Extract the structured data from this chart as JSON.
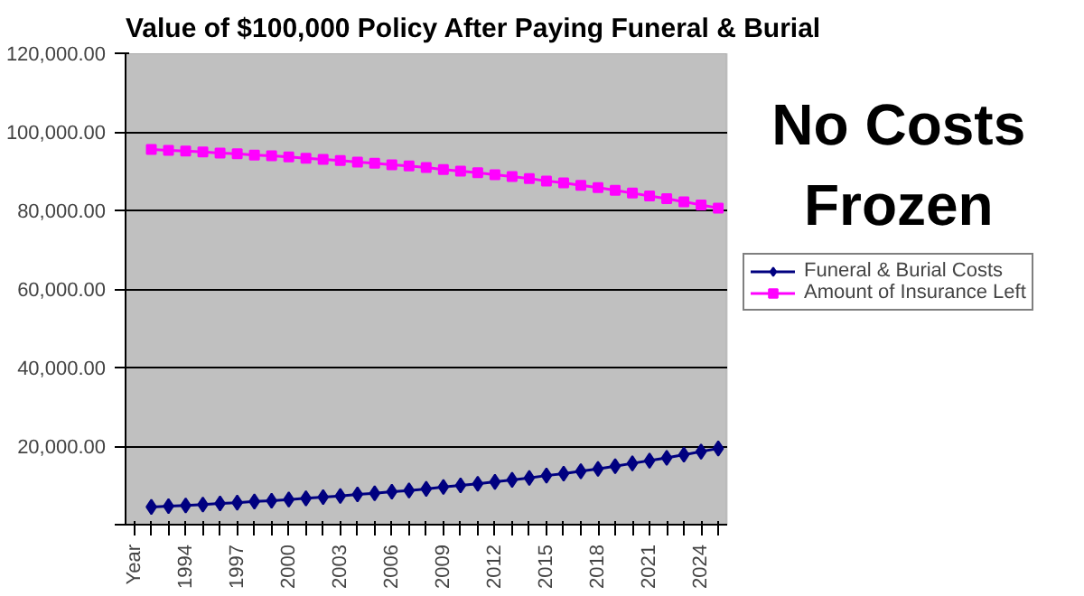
{
  "chart_data": {
    "type": "line",
    "title": "Value of $100,000 Policy After Paying Funeral & Burial",
    "annotations": [
      "No Costs Frozen"
    ],
    "categories": [
      "Year",
      null,
      null,
      "1994",
      null,
      null,
      "1997",
      null,
      null,
      "2000",
      null,
      null,
      "2003",
      null,
      null,
      "2006",
      null,
      null,
      "2009",
      null,
      null,
      "2012",
      null,
      null,
      "2015",
      null,
      null,
      "2018",
      null,
      null,
      "2021",
      null,
      null,
      "2024",
      null
    ],
    "series": [
      {
        "name": "Funeral & Burial Costs",
        "color": "#000080",
        "marker": "diamond",
        "values": [
          null,
          4500,
          4700,
          4900,
          5100,
          5400,
          5600,
          5900,
          6100,
          6400,
          6700,
          7000,
          7300,
          7700,
          8000,
          8400,
          8700,
          9100,
          9600,
          10000,
          10400,
          10900,
          11400,
          11900,
          12500,
          13000,
          13600,
          14200,
          14900,
          15600,
          16300,
          17000,
          17800,
          18600,
          19400
        ]
      },
      {
        "name": "Amount of Insurance Left",
        "color": "#ff00ff",
        "marker": "square",
        "values": [
          null,
          95500,
          95300,
          95100,
          94900,
          94600,
          94400,
          94100,
          93900,
          93600,
          93300,
          93000,
          92700,
          92300,
          92000,
          91600,
          91300,
          90900,
          90400,
          90000,
          89600,
          89100,
          88600,
          88100,
          87500,
          87000,
          86400,
          85800,
          85100,
          84400,
          83700,
          83000,
          82200,
          81400,
          80600
        ]
      }
    ],
    "ylim": [
      0,
      120000
    ],
    "yticks": [
      {
        "value": 0,
        "label": null
      },
      {
        "value": 20000,
        "label": "20,000.00"
      },
      {
        "value": 40000,
        "label": "40,000.00"
      },
      {
        "value": 60000,
        "label": "60,000.00"
      },
      {
        "value": 80000,
        "label": "80,000.00"
      },
      {
        "value": 100000,
        "label": "100,000.00"
      },
      {
        "value": 120000,
        "label": "120,000.00"
      }
    ],
    "grid": "y",
    "legend": "right"
  }
}
